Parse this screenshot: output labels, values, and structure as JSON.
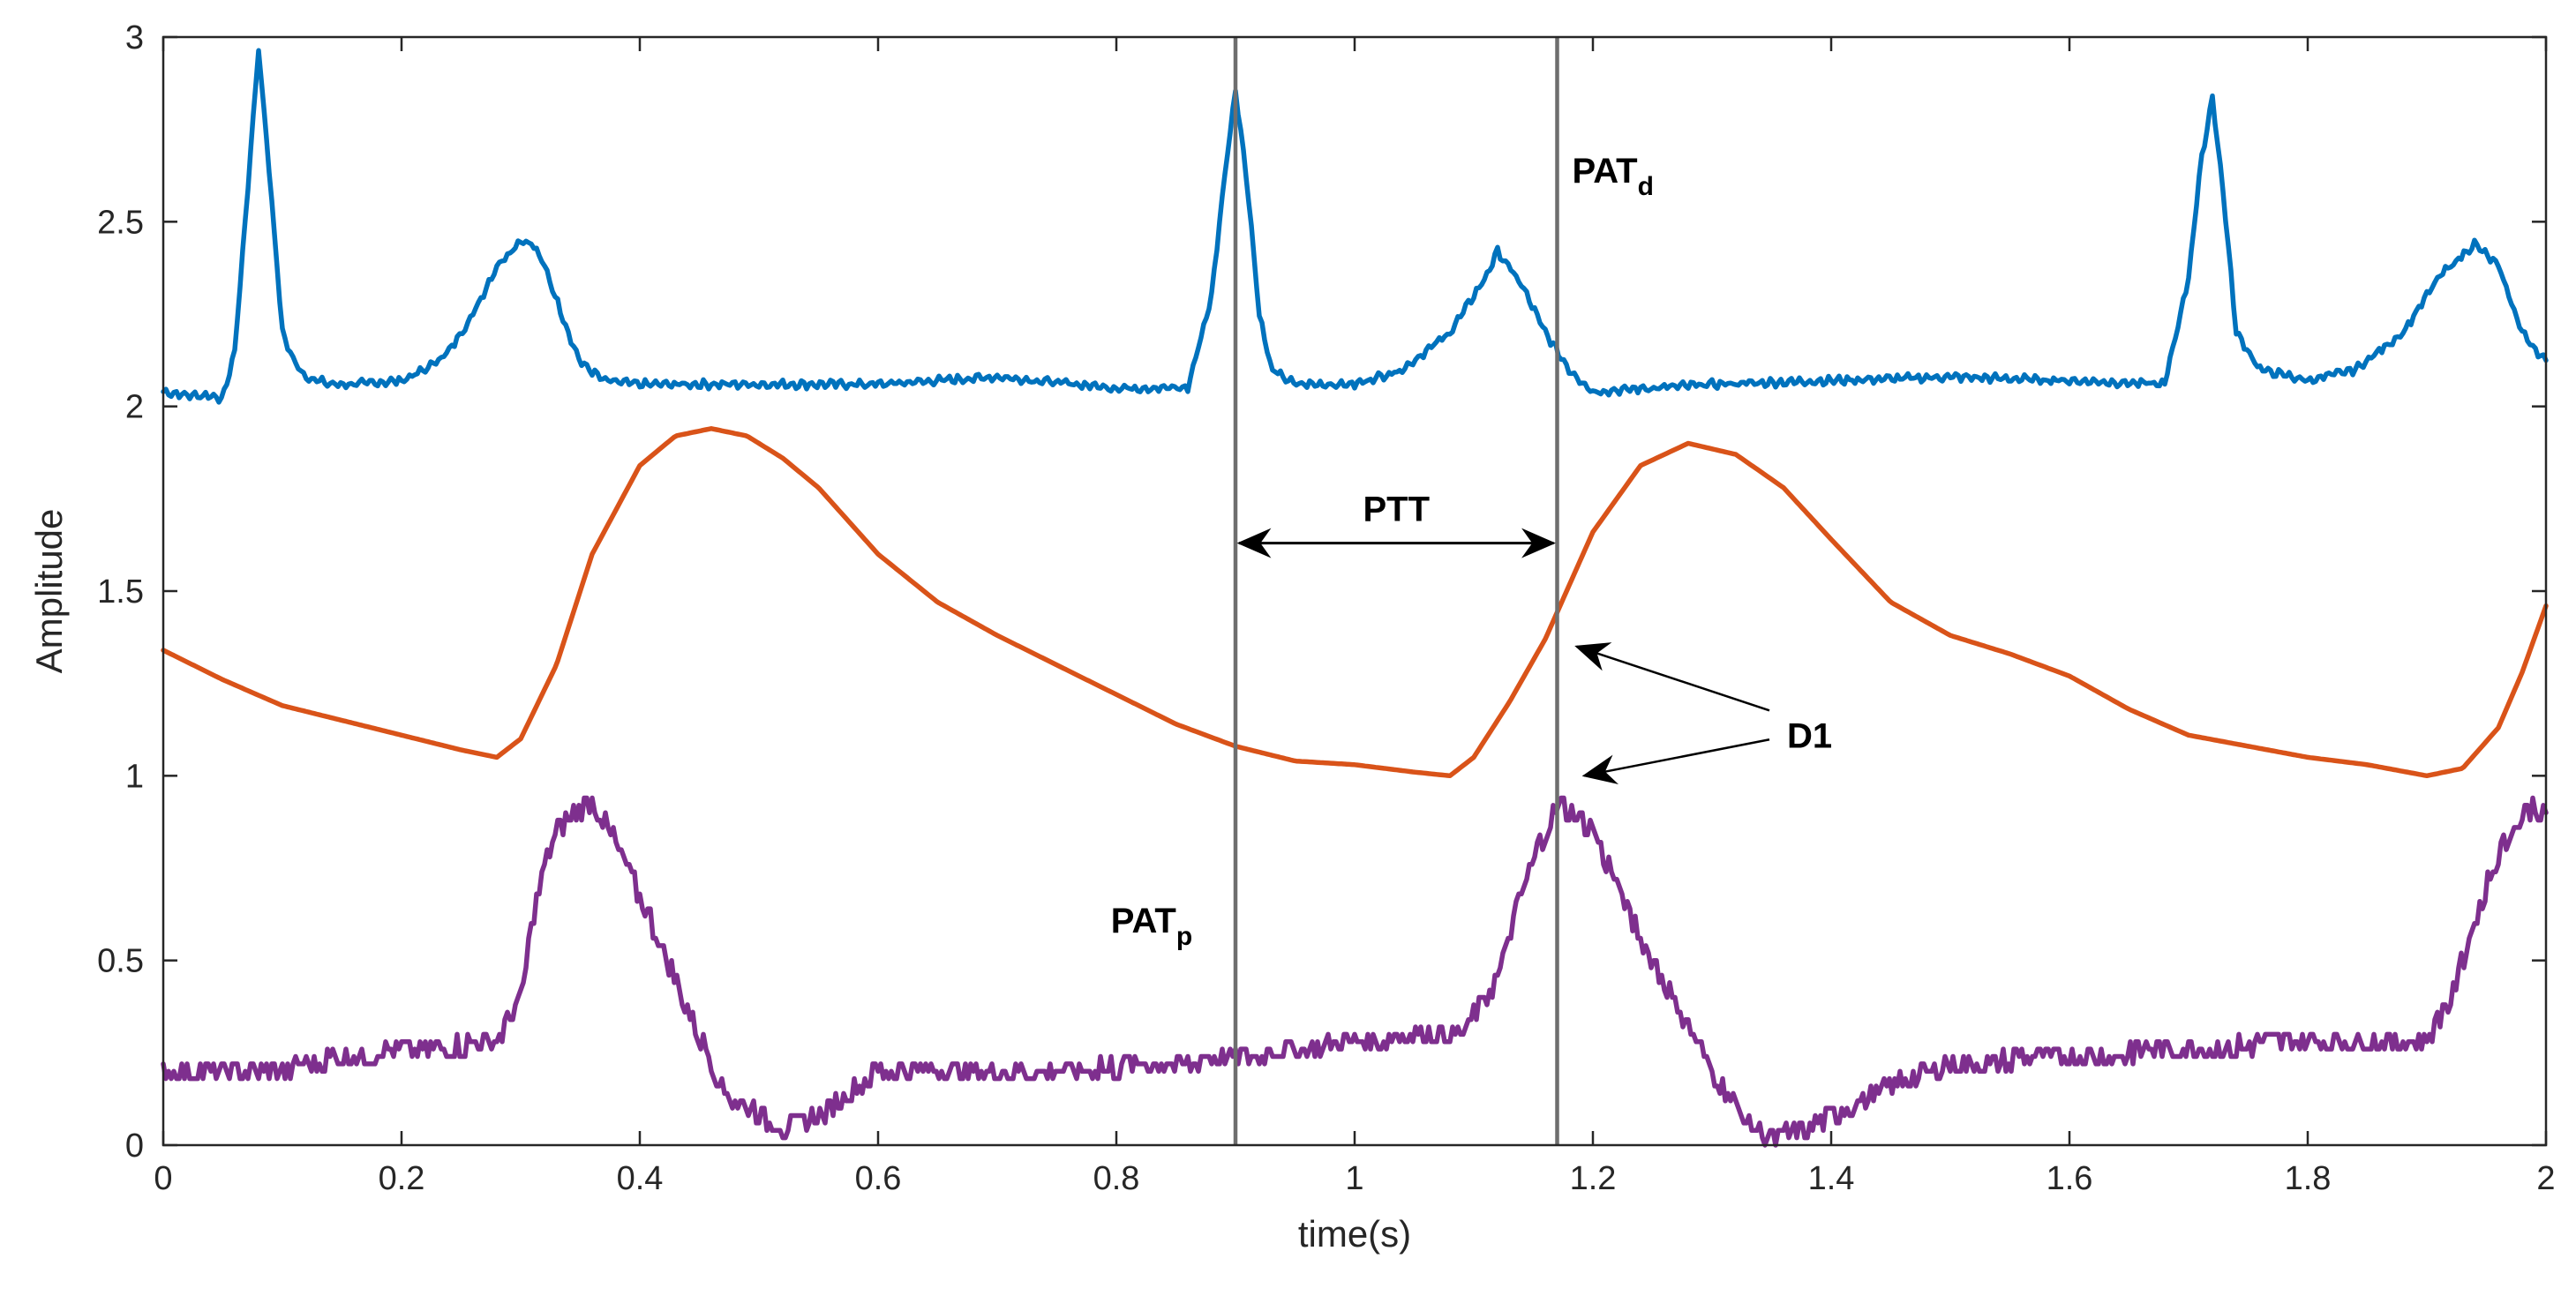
{
  "chart_data": {
    "type": "line",
    "title": "",
    "xlabel": "time(s)",
    "ylabel": "Amplitude",
    "xlim": [
      0,
      2
    ],
    "ylim": [
      0,
      3
    ],
    "grid": false,
    "xticks": [
      0,
      0.2,
      0.4,
      0.6,
      0.8,
      1,
      1.2,
      1.4,
      1.6,
      1.8,
      2
    ],
    "xtick_labels": [
      "0",
      "0.2",
      "0.4",
      "0.6",
      "0.8",
      "1",
      "1.2",
      "1.4",
      "1.6",
      "1.8",
      "2"
    ],
    "yticks": [
      0,
      0.5,
      1,
      1.5,
      2,
      2.5,
      3
    ],
    "ytick_labels": [
      "0",
      "0.5",
      "1",
      "1.5",
      "2",
      "2.5",
      "3"
    ],
    "colors": {
      "ecg": "#0072BD",
      "ppg": "#D95319",
      "deriv": "#7E2F8E",
      "marker": "#6e6e6e",
      "annotation": "#000000"
    },
    "series": [
      {
        "name": "ECG",
        "color": "#0072BD",
        "noise": 0.012,
        "x": [
          0,
          0.02,
          0.04,
          0.05,
          0.06,
          0.07,
          0.08,
          0.09,
          0.1,
          0.11,
          0.12,
          0.14,
          0.16,
          0.2,
          0.22,
          0.24,
          0.26,
          0.28,
          0.3,
          0.31,
          0.32,
          0.34,
          0.35,
          0.37,
          0.4,
          0.5,
          0.6,
          0.7,
          0.8,
          0.86,
          0.88,
          0.89,
          0.9,
          0.91,
          0.92,
          0.93,
          0.95,
          1.0,
          1.04,
          1.08,
          1.11,
          1.12,
          1.14,
          1.16,
          1.18,
          1.2,
          1.3,
          1.4,
          1.5,
          1.6,
          1.68,
          1.7,
          1.71,
          1.72,
          1.73,
          1.74,
          1.76,
          1.8,
          1.84,
          1.88,
          1.91,
          1.94,
          1.96,
          1.98,
          2.0
        ],
        "y": [
          2.04,
          2.03,
          2.03,
          2.02,
          2.15,
          2.55,
          2.97,
          2.6,
          2.2,
          2.12,
          2.08,
          2.06,
          2.06,
          2.07,
          2.1,
          2.15,
          2.25,
          2.38,
          2.45,
          2.44,
          2.38,
          2.2,
          2.12,
          2.07,
          2.06,
          2.06,
          2.06,
          2.08,
          2.05,
          2.05,
          2.3,
          2.6,
          2.86,
          2.6,
          2.25,
          2.1,
          2.06,
          2.06,
          2.1,
          2.2,
          2.35,
          2.42,
          2.33,
          2.2,
          2.1,
          2.04,
          2.06,
          2.07,
          2.08,
          2.07,
          2.06,
          2.35,
          2.65,
          2.84,
          2.55,
          2.2,
          2.1,
          2.07,
          2.1,
          2.2,
          2.35,
          2.44,
          2.38,
          2.2,
          2.12
        ]
      },
      {
        "name": "PPG",
        "color": "#D95319",
        "noise": 0,
        "x": [
          0,
          0.05,
          0.1,
          0.15,
          0.2,
          0.25,
          0.28,
          0.3,
          0.33,
          0.36,
          0.4,
          0.43,
          0.46,
          0.49,
          0.52,
          0.55,
          0.6,
          0.65,
          0.7,
          0.75,
          0.8,
          0.85,
          0.9,
          0.95,
          1.0,
          1.05,
          1.08,
          1.1,
          1.13,
          1.16,
          1.2,
          1.24,
          1.28,
          1.32,
          1.36,
          1.4,
          1.45,
          1.5,
          1.55,
          1.6,
          1.65,
          1.7,
          1.75,
          1.8,
          1.85,
          1.9,
          1.93,
          1.96,
          1.98,
          2.0
        ],
        "y": [
          1.34,
          1.26,
          1.19,
          1.15,
          1.11,
          1.07,
          1.05,
          1.1,
          1.3,
          1.6,
          1.84,
          1.92,
          1.94,
          1.92,
          1.86,
          1.78,
          1.6,
          1.47,
          1.38,
          1.3,
          1.22,
          1.14,
          1.08,
          1.04,
          1.03,
          1.01,
          1.0,
          1.05,
          1.2,
          1.37,
          1.66,
          1.84,
          1.9,
          1.87,
          1.78,
          1.64,
          1.47,
          1.38,
          1.33,
          1.27,
          1.18,
          1.11,
          1.08,
          1.05,
          1.03,
          1.0,
          1.02,
          1.13,
          1.28,
          1.46
        ]
      },
      {
        "name": "Derivative",
        "color": "#7E2F8E",
        "noise": 0.022,
        "x": [
          0,
          0.05,
          0.1,
          0.15,
          0.2,
          0.25,
          0.28,
          0.3,
          0.31,
          0.32,
          0.33,
          0.35,
          0.36,
          0.37,
          0.39,
          0.41,
          0.43,
          0.45,
          0.47,
          0.5,
          0.52,
          0.54,
          0.56,
          0.58,
          0.6,
          0.7,
          0.8,
          0.9,
          1.0,
          1.05,
          1.09,
          1.12,
          1.14,
          1.16,
          1.17,
          1.18,
          1.2,
          1.22,
          1.25,
          1.3,
          1.33,
          1.35,
          1.38,
          1.4,
          1.45,
          1.5,
          1.6,
          1.7,
          1.8,
          1.85,
          1.9,
          1.92,
          1.95,
          1.97,
          1.99,
          2.0
        ],
        "y": [
          0.2,
          0.2,
          0.2,
          0.24,
          0.26,
          0.27,
          0.28,
          0.4,
          0.6,
          0.75,
          0.86,
          0.9,
          0.93,
          0.88,
          0.75,
          0.6,
          0.45,
          0.3,
          0.15,
          0.08,
          0.05,
          0.06,
          0.1,
          0.15,
          0.2,
          0.2,
          0.21,
          0.24,
          0.28,
          0.3,
          0.3,
          0.45,
          0.68,
          0.85,
          0.91,
          0.91,
          0.85,
          0.7,
          0.5,
          0.2,
          0.06,
          0.02,
          0.04,
          0.08,
          0.16,
          0.22,
          0.24,
          0.26,
          0.28,
          0.28,
          0.28,
          0.4,
          0.7,
          0.85,
          0.92,
          0.88
        ]
      }
    ],
    "markers": [
      {
        "name": "PAT_p",
        "x": 0.9
      },
      {
        "name": "PAT_d",
        "x": 1.17
      }
    ],
    "annotations": {
      "ptt": {
        "label": "PTT",
        "x_start": 0.9,
        "x_end": 1.17,
        "y": 1.63
      },
      "d1": {
        "label": "D1",
        "x": 1.3,
        "y": 1.11,
        "targets": [
          {
            "x": 1.19,
            "y": 1.35
          },
          {
            "x": 1.2,
            "y": 1.0
          }
        ]
      },
      "pat_p": {
        "label": "PAT",
        "sub": "p",
        "x": 0.8,
        "y": 0.6
      },
      "pat_d": {
        "label": "PAT",
        "sub": "d",
        "x": 1.19,
        "y": 2.63
      }
    }
  }
}
